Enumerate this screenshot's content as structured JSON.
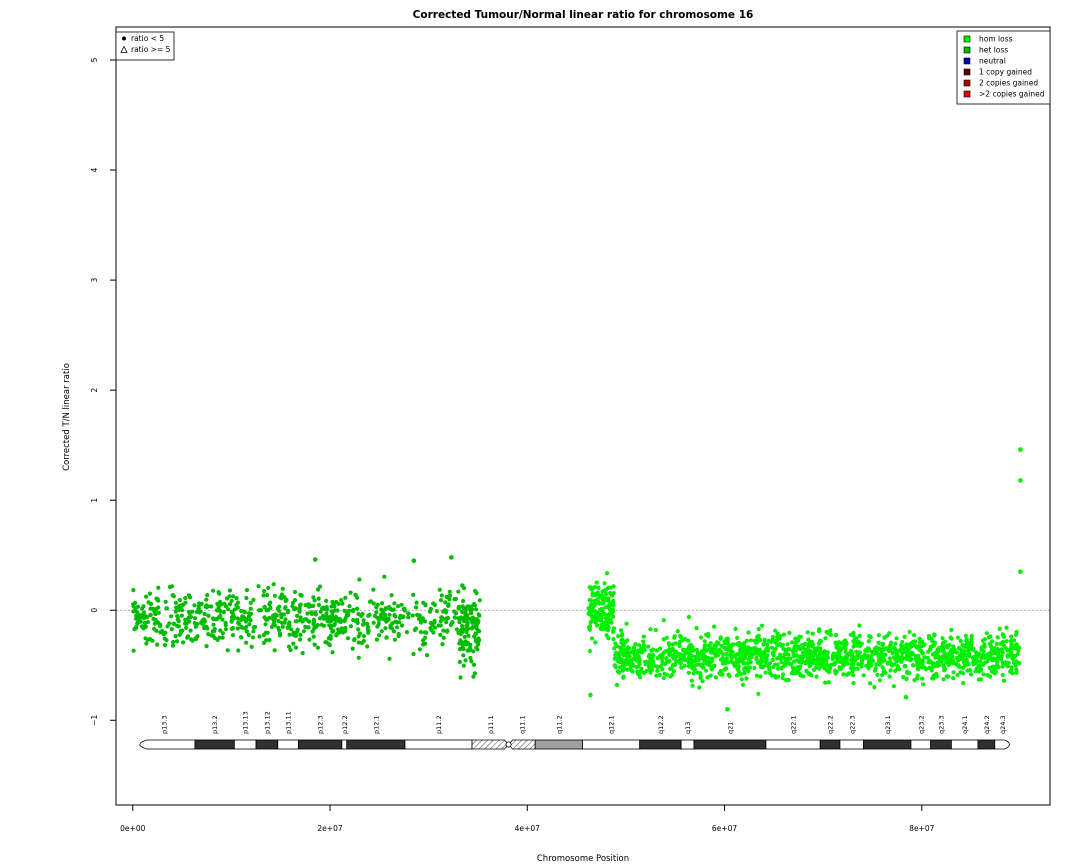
{
  "chart_data": {
    "type": "scatter",
    "title": "Corrected Tumour/Normal linear ratio for chromosome  16",
    "xlabel": "Chromosome Position",
    "ylabel": "Corrected T/N linear ratio",
    "xlim": [
      -1700000.0,
      93000000.0
    ],
    "ylim": [
      -1.77,
      5.3
    ],
    "x_ticks": [
      0,
      20000000,
      40000000,
      60000000,
      80000000
    ],
    "x_tick_labels": [
      "0e+00",
      "2e+07",
      "4e+07",
      "6e+07",
      "8e+07"
    ],
    "y_ticks": [
      -1,
      0,
      1,
      2,
      3,
      4,
      5
    ],
    "y_tick_labels": [
      "−1",
      "0",
      "1",
      "2",
      "3",
      "4",
      "5"
    ],
    "reference_line_y": 0,
    "shape_legend": {
      "placement": "top-left",
      "items": [
        {
          "symbol": "circle",
          "label": "ratio < 5"
        },
        {
          "symbol": "triangle",
          "label": "ratio >= 5"
        }
      ]
    },
    "legend": {
      "placement": "top-right",
      "items": [
        {
          "label": "hom loss",
          "color": "#00ee00"
        },
        {
          "label": "het loss",
          "color": "#00bb00"
        },
        {
          "label": "neutral",
          "color": "#0000aa"
        },
        {
          "label": "1 copy gained",
          "color": "#660000"
        },
        {
          "label": "2 copies gained",
          "color": "#aa0000"
        },
        {
          "label": ">2 copies gained",
          "color": "#ee0000"
        }
      ]
    },
    "series": [
      {
        "name": "het loss",
        "color": "#00bb00",
        "segments": [
          {
            "x_start": 0,
            "x_end": 33000000,
            "mean": -0.08,
            "spread": 0.13,
            "density": 700
          },
          {
            "x_start": 33000000,
            "x_end": 35200000,
            "mean": -0.15,
            "spread": 0.18,
            "density": 120
          }
        ]
      },
      {
        "name": "hom loss",
        "color": "#00ee00",
        "segments": [
          {
            "x_start": 46200000,
            "x_end": 48800000,
            "mean": -0.02,
            "spread": 0.12,
            "density": 160
          },
          {
            "x_start": 48800000,
            "x_end": 90000000,
            "mean": -0.42,
            "spread": 0.1,
            "density": 1500
          }
        ]
      }
    ],
    "outliers": [
      {
        "x": 90000000,
        "y": 1.46,
        "color": "#00ee00"
      },
      {
        "x": 90000000,
        "y": 1.18,
        "color": "#00ee00"
      },
      {
        "x": 90000000,
        "y": 0.35,
        "color": "#00ee00"
      },
      {
        "x": 60300000,
        "y": -0.9,
        "color": "#00ee00"
      },
      {
        "x": 18500000,
        "y": 0.46,
        "color": "#00bb00"
      },
      {
        "x": 28500000,
        "y": 0.45,
        "color": "#00bb00"
      },
      {
        "x": 32300000,
        "y": 0.48,
        "color": "#00bb00"
      },
      {
        "x": 46400000,
        "y": -0.77,
        "color": "#00ee00"
      },
      {
        "x": 78400000,
        "y": -0.79,
        "color": "#00ee00"
      }
    ],
    "ideogram": {
      "bands": [
        {
          "name": "p13.3",
          "start": 0,
          "end": 6300000,
          "stain": "gneg"
        },
        {
          "name": "p13.2",
          "start": 6300000,
          "end": 10300000,
          "stain": "gpos"
        },
        {
          "name": "p13.13",
          "start": 10300000,
          "end": 12500000,
          "stain": "gneg"
        },
        {
          "name": "p13.12",
          "start": 12500000,
          "end": 14700000,
          "stain": "gpos"
        },
        {
          "name": "p13.11",
          "start": 14700000,
          "end": 16800000,
          "stain": "gneg"
        },
        {
          "name": "p12.3",
          "start": 16800000,
          "end": 21200000,
          "stain": "gpos"
        },
        {
          "name": "p12.2",
          "start": 21200000,
          "end": 21700000,
          "stain": "gneg"
        },
        {
          "name": "p12.1",
          "start": 21700000,
          "end": 27600000,
          "stain": "gpos"
        },
        {
          "name": "p11.2",
          "start": 27600000,
          "end": 34400000,
          "stain": "gneg"
        },
        {
          "name": "p11.1",
          "start": 34400000,
          "end": 38100000,
          "stain": "acen"
        },
        {
          "name": "q11.1",
          "start": 38100000,
          "end": 40800000,
          "stain": "acen"
        },
        {
          "name": "q11.2",
          "start": 40800000,
          "end": 45600000,
          "stain": "gvar"
        },
        {
          "name": "q12.1",
          "start": 45600000,
          "end": 51400000,
          "stain": "gneg"
        },
        {
          "name": "q12.2",
          "start": 51400000,
          "end": 55600000,
          "stain": "gpos"
        },
        {
          "name": "q13",
          "start": 55600000,
          "end": 56900000,
          "stain": "gneg"
        },
        {
          "name": "q21",
          "start": 56900000,
          "end": 64200000,
          "stain": "gpos"
        },
        {
          "name": "q22.1",
          "start": 64200000,
          "end": 69700000,
          "stain": "gneg"
        },
        {
          "name": "q22.2",
          "start": 69700000,
          "end": 71700000,
          "stain": "gpos"
        },
        {
          "name": "q22.3",
          "start": 71700000,
          "end": 74100000,
          "stain": "gneg"
        },
        {
          "name": "q23.1",
          "start": 74100000,
          "end": 78900000,
          "stain": "gpos"
        },
        {
          "name": "q23.2",
          "start": 78900000,
          "end": 80900000,
          "stain": "gneg"
        },
        {
          "name": "q23.3",
          "start": 80900000,
          "end": 83000000,
          "stain": "gpos"
        },
        {
          "name": "q24.1",
          "start": 83000000,
          "end": 85700000,
          "stain": "gneg"
        },
        {
          "name": "q24.2",
          "start": 85700000,
          "end": 87400000,
          "stain": "gpos"
        },
        {
          "name": "q24.3",
          "start": 87400000,
          "end": 89000000,
          "stain": "gneg"
        }
      ]
    }
  }
}
